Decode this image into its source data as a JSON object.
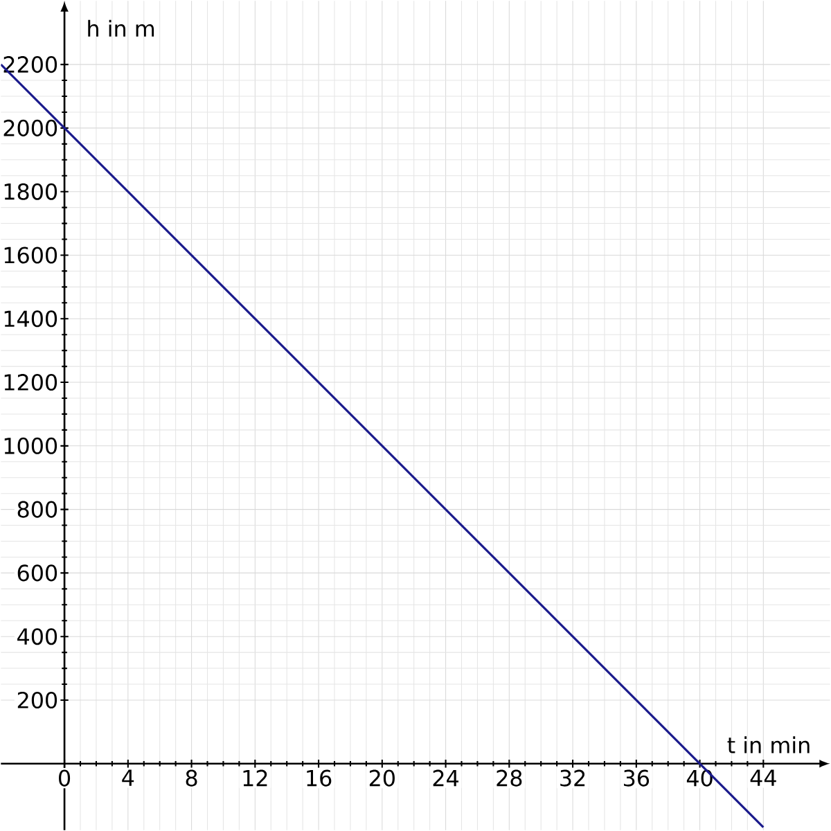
{
  "chart_data": {
    "type": "line",
    "xlabel": "t in min",
    "ylabel": "h in m",
    "x": [
      -4,
      44
    ],
    "series": [
      {
        "color": "#1a1a8c",
        "values": [
          2200,
          -200
        ]
      }
    ],
    "xlim": [
      -4,
      48.2
    ],
    "ylim": [
      -209,
      2400
    ],
    "xticks": [
      0,
      4,
      8,
      12,
      16,
      20,
      24,
      28,
      32,
      36,
      40,
      44
    ],
    "yticks": [
      200,
      400,
      600,
      800,
      1000,
      1200,
      1400,
      1600,
      1800,
      2000,
      2200
    ],
    "grid": true,
    "marker": "none",
    "line_style": "solid"
  }
}
